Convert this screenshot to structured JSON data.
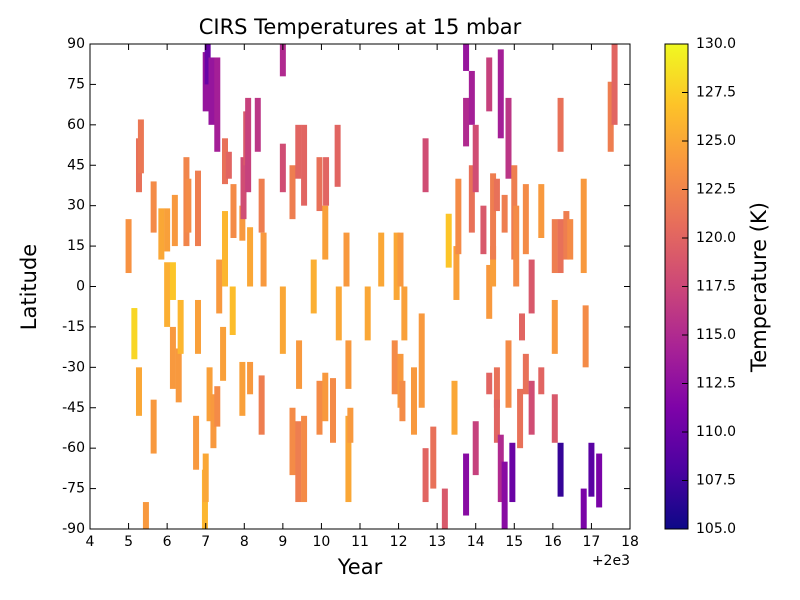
{
  "chart_data": {
    "type": "segments",
    "title": "CIRS Temperatures at 15 mbar",
    "x_label": "Year",
    "y_label": "Latitude",
    "x_offset_label": "+2e3",
    "colorbar_label": "Temperature (K)",
    "colormap": "plasma",
    "xlim": [
      4,
      18
    ],
    "xticks": [
      4,
      5,
      6,
      7,
      8,
      9,
      10,
      11,
      12,
      13,
      14,
      15,
      16,
      17,
      18
    ],
    "ylim": [
      -90,
      90
    ],
    "yticks": [
      -90,
      -75,
      -60,
      -45,
      -30,
      -15,
      0,
      15,
      30,
      45,
      60,
      75,
      90
    ],
    "clim": [
      105,
      130
    ],
    "cticks": [
      {
        "value": 105,
        "label": "105.0"
      },
      {
        "value": 107.5,
        "label": "107.5"
      },
      {
        "value": 110,
        "label": "110.0"
      },
      {
        "value": 112.5,
        "label": "112.5"
      },
      {
        "value": 115,
        "label": "115.0"
      },
      {
        "value": 117.5,
        "label": "117.5"
      },
      {
        "value": 120,
        "label": "120.0"
      },
      {
        "value": 122.5,
        "label": "122.5"
      },
      {
        "value": 125,
        "label": "125.0"
      },
      {
        "value": 127.5,
        "label": "127.5"
      },
      {
        "value": 130,
        "label": "130.0"
      }
    ],
    "segments": [
      [
        5.0,
        5,
        25,
        123.5
      ],
      [
        5.15,
        -27,
        -8,
        128
      ],
      [
        5.27,
        -48,
        -30,
        125
      ],
      [
        5.27,
        35,
        55,
        121
      ],
      [
        5.32,
        42,
        62,
        121.5
      ],
      [
        5.45,
        -90,
        -80,
        124
      ],
      [
        5.65,
        -62,
        -42,
        124
      ],
      [
        5.65,
        20,
        39,
        123
      ],
      [
        5.85,
        10,
        29,
        125
      ],
      [
        6.0,
        -15,
        9,
        125.5
      ],
      [
        6.0,
        13,
        29,
        124.5
      ],
      [
        6.15,
        -38,
        -15,
        124
      ],
      [
        6.15,
        -5,
        9,
        127
      ],
      [
        6.2,
        15,
        34,
        124
      ],
      [
        6.3,
        -43,
        -23,
        124
      ],
      [
        6.35,
        -25,
        -5,
        126
      ],
      [
        6.5,
        15,
        48,
        122.5
      ],
      [
        6.55,
        20,
        40,
        123
      ],
      [
        6.75,
        -68,
        -48,
        124
      ],
      [
        6.8,
        -25,
        -5,
        124.5
      ],
      [
        6.8,
        15,
        43,
        122
      ],
      [
        6.98,
        -90,
        -68,
        126
      ],
      [
        7.0,
        -80,
        -62,
        125
      ],
      [
        7.0,
        65,
        87,
        113
      ],
      [
        7.05,
        75,
        90,
        110
      ],
      [
        7.1,
        -50,
        -30,
        124.5
      ],
      [
        7.15,
        60,
        85,
        113
      ],
      [
        7.2,
        -60,
        -40,
        124
      ],
      [
        7.3,
        -52,
        -37,
        123
      ],
      [
        7.3,
        50,
        85,
        114
      ],
      [
        7.35,
        -10,
        10,
        124
      ],
      [
        7.45,
        -35,
        -15,
        124.5
      ],
      [
        7.5,
        0,
        28,
        126
      ],
      [
        7.5,
        38,
        55,
        121
      ],
      [
        7.6,
        40,
        50,
        120
      ],
      [
        7.7,
        -18,
        0,
        126.5
      ],
      [
        7.72,
        18,
        38,
        123
      ],
      [
        7.95,
        -48,
        -28,
        124.5
      ],
      [
        7.95,
        17,
        30,
        124
      ],
      [
        7.98,
        25,
        48,
        118
      ],
      [
        8.05,
        45,
        65,
        119
      ],
      [
        8.1,
        35,
        70,
        117
      ],
      [
        8.15,
        -40,
        -28,
        124
      ],
      [
        8.15,
        0,
        22,
        125
      ],
      [
        8.35,
        50,
        70,
        116
      ],
      [
        8.45,
        -55,
        -33,
        122
      ],
      [
        8.5,
        0,
        20,
        124
      ],
      [
        8.45,
        20,
        40,
        122
      ],
      [
        9.0,
        35,
        53,
        118
      ],
      [
        9.0,
        -25,
        0,
        125
      ],
      [
        9.0,
        78,
        90,
        115
      ],
      [
        9.25,
        -70,
        -45,
        123
      ],
      [
        9.25,
        25,
        45,
        122
      ],
      [
        9.4,
        -80,
        -50,
        122
      ],
      [
        9.42,
        -38,
        -20,
        124
      ],
      [
        9.4,
        40,
        60,
        120
      ],
      [
        9.55,
        -80,
        -48,
        123
      ],
      [
        9.55,
        30,
        60,
        120
      ],
      [
        9.8,
        -10,
        10,
        125.5
      ],
      [
        9.95,
        -55,
        -35,
        123
      ],
      [
        9.95,
        28,
        48,
        121
      ],
      [
        10.1,
        -50,
        -32,
        124
      ],
      [
        10.1,
        10,
        30,
        124.5
      ],
      [
        10.12,
        30,
        48,
        120
      ],
      [
        10.3,
        -58,
        -34,
        123
      ],
      [
        10.45,
        -20,
        0,
        125
      ],
      [
        10.42,
        37,
        60,
        120
      ],
      [
        10.7,
        -80,
        -48,
        125
      ],
      [
        10.7,
        -38,
        -20,
        124
      ],
      [
        10.65,
        0,
        20,
        124
      ],
      [
        10.75,
        -58,
        -45,
        124
      ],
      [
        11.2,
        -20,
        0,
        125
      ],
      [
        11.55,
        0,
        20,
        125
      ],
      [
        11.9,
        -40,
        -20,
        123
      ],
      [
        11.95,
        -5,
        20,
        125
      ],
      [
        12.05,
        -45,
        -25,
        124
      ],
      [
        12.05,
        0,
        20,
        124
      ],
      [
        12.1,
        -50,
        -35,
        123
      ],
      [
        12.15,
        -20,
        0,
        124.5
      ],
      [
        12.4,
        -55,
        -30,
        124
      ],
      [
        12.6,
        -45,
        -10,
        124
      ],
      [
        12.7,
        -80,
        -60,
        120
      ],
      [
        12.7,
        35,
        55,
        118
      ],
      [
        12.9,
        -75,
        -52,
        121
      ],
      [
        13.2,
        -90,
        -75,
        119
      ],
      [
        13.3,
        7,
        27,
        127
      ],
      [
        13.45,
        -55,
        -35,
        125
      ],
      [
        13.5,
        -5,
        15,
        124.5
      ],
      [
        13.55,
        12,
        40,
        123
      ],
      [
        13.75,
        52,
        70,
        115
      ],
      [
        13.75,
        80,
        90,
        113
      ],
      [
        13.75,
        -85,
        -62,
        112
      ],
      [
        13.9,
        60,
        80,
        114
      ],
      [
        13.9,
        20,
        45,
        121
      ],
      [
        14.0,
        -70,
        -50,
        117
      ],
      [
        14.0,
        35,
        60,
        118
      ],
      [
        14.2,
        12,
        30,
        119
      ],
      [
        14.35,
        65,
        85,
        117
      ],
      [
        14.35,
        -40,
        -32,
        120
      ],
      [
        14.35,
        -12,
        8,
        124
      ],
      [
        14.45,
        0,
        15,
        124.5
      ],
      [
        14.45,
        10,
        42,
        122
      ],
      [
        14.55,
        28,
        40,
        121
      ],
      [
        14.55,
        -45,
        -30,
        121
      ],
      [
        14.55,
        -58,
        -42,
        120
      ],
      [
        14.65,
        -80,
        -55,
        115
      ],
      [
        14.65,
        55,
        88,
        114
      ],
      [
        14.75,
        -90,
        -65,
        112
      ],
      [
        14.75,
        20,
        34,
        122
      ],
      [
        14.85,
        40,
        70,
        116
      ],
      [
        14.85,
        -45,
        -20,
        123
      ],
      [
        14.95,
        -80,
        -58,
        110
      ],
      [
        15.0,
        10,
        45,
        122
      ],
      [
        15.05,
        0,
        30,
        123
      ],
      [
        15.15,
        -60,
        -38,
        121
      ],
      [
        15.2,
        -20,
        -10,
        120
      ],
      [
        15.3,
        12,
        38,
        123
      ],
      [
        15.3,
        -40,
        -25,
        121
      ],
      [
        15.45,
        -55,
        -35,
        118
      ],
      [
        15.45,
        -10,
        10,
        119
      ],
      [
        15.7,
        -40,
        -30,
        120
      ],
      [
        15.7,
        18,
        38,
        124
      ],
      [
        16.05,
        -25,
        -5,
        124
      ],
      [
        16.05,
        -58,
        -40,
        119
      ],
      [
        16.05,
        5,
        25,
        122
      ],
      [
        16.2,
        5,
        25,
        121
      ],
      [
        16.2,
        -78,
        -58,
        107
      ],
      [
        16.2,
        50,
        70,
        121
      ],
      [
        16.35,
        10,
        28,
        122
      ],
      [
        16.45,
        10,
        25,
        123
      ],
      [
        16.8,
        -90,
        -75,
        111
      ],
      [
        16.8,
        5,
        40,
        124
      ],
      [
        16.85,
        -30,
        -7,
        123
      ],
      [
        17.0,
        -78,
        -58,
        109
      ],
      [
        17.2,
        -82,
        -62,
        111
      ],
      [
        17.5,
        50,
        76,
        122
      ],
      [
        17.6,
        60,
        90,
        120
      ]
    ]
  }
}
